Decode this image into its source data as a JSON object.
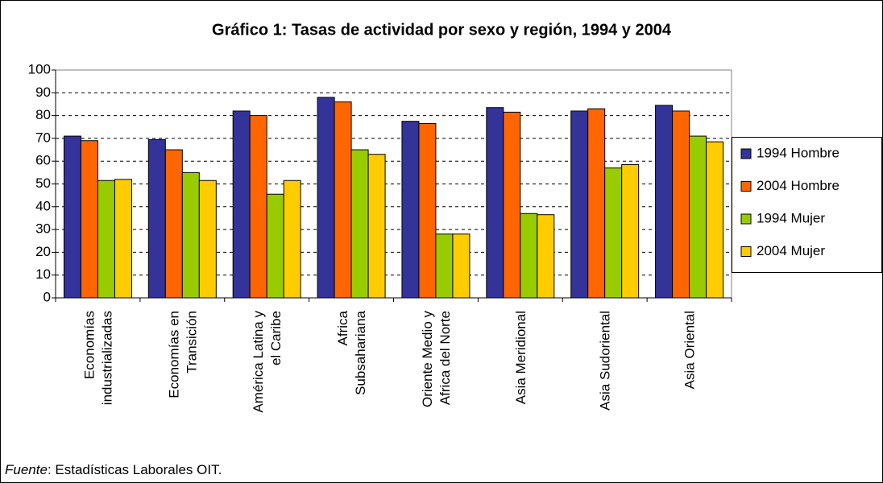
{
  "chart_data": {
    "type": "bar",
    "title": "Gráfico 1: Tasas de actividad por sexo y región, 1994 y 2004",
    "categories": [
      "Economías\nindustrializadas",
      "Economías en\nTransición",
      "América Latina y\nel Caribe",
      "Africa\nSubsahariana",
      "Oriente Medio y\nAfrica del Norte",
      "Asia Meridional",
      "Asia Sudoriental",
      "Asia Oriental"
    ],
    "series": [
      {
        "name": "1994 Hombre",
        "color": "#333399",
        "values": [
          71,
          69.5,
          82,
          88,
          77.5,
          83.5,
          82,
          84.5
        ]
      },
      {
        "name": "2004 Hombre",
        "color": "#ff6600",
        "values": [
          69,
          65,
          80,
          86,
          76.5,
          81.5,
          83,
          82
        ]
      },
      {
        "name": "1994 Mujer",
        "color": "#99cc00",
        "values": [
          51.5,
          55,
          45.5,
          65,
          28,
          37,
          57,
          71
        ]
      },
      {
        "name": "2004 Mujer",
        "color": "#ffcc00",
        "values": [
          52,
          51.5,
          51.5,
          63,
          28,
          36.5,
          58.5,
          68.5
        ]
      }
    ],
    "ylim": [
      0,
      100
    ],
    "yticks": [
      0,
      10,
      20,
      30,
      40,
      50,
      60,
      70,
      80,
      90,
      100
    ],
    "grid": true,
    "legend": "right",
    "source_label": "Fuente",
    "source_text": ": Estadísticas Laborales OIT."
  }
}
